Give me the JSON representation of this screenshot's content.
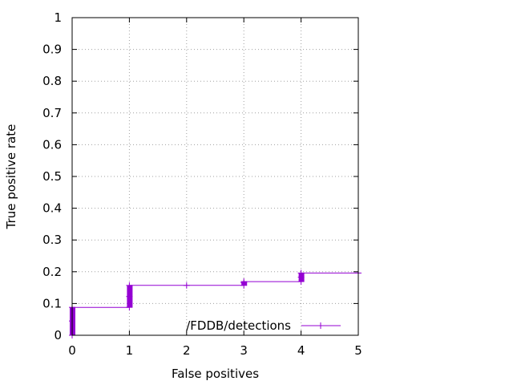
{
  "chart_data": {
    "type": "line",
    "title": "",
    "xlabel": "False positives",
    "ylabel": "True positive rate",
    "xlim": [
      0,
      5
    ],
    "ylim": [
      0,
      1
    ],
    "x_ticks": [
      "0",
      "1",
      "2",
      "3",
      "4",
      "5"
    ],
    "y_ticks": [
      "0",
      "0.1",
      "0.2",
      "0.3",
      "0.4",
      "0.5",
      "0.6",
      "0.7",
      "0.8",
      "0.9",
      "1"
    ],
    "grid": true,
    "legend_position": "bottom-right",
    "series": [
      {
        "name": "/FDDB/detections",
        "color": "#9400d3",
        "x": [
          0,
          0,
          0,
          1,
          1,
          1,
          2,
          3,
          3,
          3,
          4,
          4,
          4,
          5
        ],
        "y": [
          0,
          0.045,
          0.088,
          0.088,
          0.122,
          0.157,
          0.157,
          0.157,
          0.165,
          0.169,
          0.169,
          0.183,
          0.196,
          0.196
        ]
      }
    ],
    "dense_markers": [
      {
        "x": 0,
        "y_from": 0,
        "y_to": 0.088
      },
      {
        "x": 1,
        "y_from": 0.088,
        "y_to": 0.157
      },
      {
        "x": 3,
        "y_from": 0.157,
        "y_to": 0.169
      },
      {
        "x": 4,
        "y_from": 0.169,
        "y_to": 0.196
      }
    ]
  }
}
